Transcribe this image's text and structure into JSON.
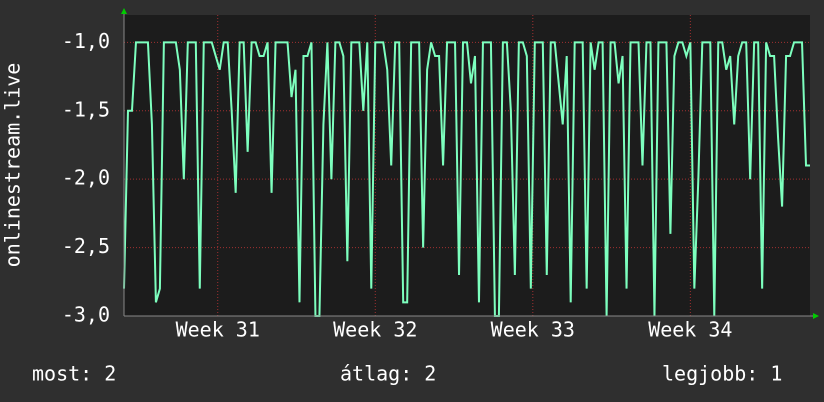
{
  "chart_data": {
    "type": "line",
    "y_label": "onlinestream.live",
    "color": "#7dffbe",
    "values": [
      -2.8,
      -1.5,
      -1.5,
      -1,
      -1,
      -1,
      -1,
      -1.6,
      -2.9,
      -2.8,
      -1,
      -1,
      -1,
      -1,
      -1.2,
      -2.0,
      -1,
      -1,
      -1,
      -2.8,
      -1,
      -1,
      -1,
      -1.1,
      -1.2,
      -1,
      -1,
      -1.5,
      -2.1,
      -1,
      -1,
      -1.8,
      -1,
      -1,
      -1.1,
      -1.1,
      -1,
      -2.1,
      -1,
      -1,
      -1,
      -1,
      -1.4,
      -1.2,
      -2.9,
      -1.1,
      -1.1,
      -1,
      -3.0,
      -3.0,
      -1.6,
      -1,
      -2.0,
      -1,
      -1,
      -1.1,
      -2.6,
      -1,
      -1,
      -1,
      -1.5,
      -1,
      -2.8,
      -1,
      -1,
      -1,
      -1.2,
      -1.9,
      -1,
      -1,
      -2.9,
      -2.9,
      -1,
      -1,
      -1,
      -2.5,
      -1.2,
      -1,
      -1.1,
      -1.1,
      -1.9,
      -1,
      -1,
      -1,
      -2.7,
      -1,
      -1,
      -1.3,
      -1.1,
      -2.9,
      -1,
      -1,
      -1,
      -3.0,
      -3.0,
      -1,
      -1,
      -1.5,
      -2.7,
      -1,
      -1,
      -1.1,
      -2.8,
      -1,
      -1,
      -1,
      -2.7,
      -1,
      -1,
      -1.3,
      -1.6,
      -1.1,
      -2.9,
      -1,
      -1,
      -1,
      -2.8,
      -1,
      -1.2,
      -1,
      -1,
      -3.0,
      -1,
      -1,
      -1.3,
      -1.1,
      -2.8,
      -1,
      -1,
      -1,
      -1.9,
      -1,
      -1,
      -3.0,
      -1,
      -1,
      -1,
      -2.4,
      -1.1,
      -1,
      -1,
      -1.1,
      -1,
      -2.8,
      -2.0,
      -1,
      -1,
      -1,
      -3.0,
      -1,
      -1,
      -1.2,
      -1.1,
      -1.6,
      -1.1,
      -1,
      -1,
      -2.0,
      -1,
      -1,
      -2.8,
      -1,
      -1.1,
      -1.1,
      -1.7,
      -2.2,
      -1.1,
      -1.1,
      -1,
      -1,
      -1,
      -1.9,
      -1.9
    ],
    "xlim": [
      0,
      172
    ],
    "xticks": [
      {
        "value": 23.5,
        "label": "Week 31"
      },
      {
        "value": 63,
        "label": "Week 32"
      },
      {
        "value": 102.5,
        "label": "Week 33"
      },
      {
        "value": 142,
        "label": "Week 34"
      }
    ],
    "ylim": [
      -3,
      -0.8
    ],
    "yticks": [
      {
        "value": -3,
        "label": "-3,0"
      },
      {
        "value": -2.5,
        "label": "-2,5"
      },
      {
        "value": -2,
        "label": "-2,0"
      },
      {
        "value": -1.5,
        "label": "-1,5"
      },
      {
        "value": -1,
        "label": "-1,0"
      }
    ],
    "grid": true,
    "legend": [
      {
        "label": "most:",
        "value": 2
      },
      {
        "label": "átlag:",
        "value": 2
      },
      {
        "label": "legjobb:",
        "value": 1
      }
    ]
  }
}
